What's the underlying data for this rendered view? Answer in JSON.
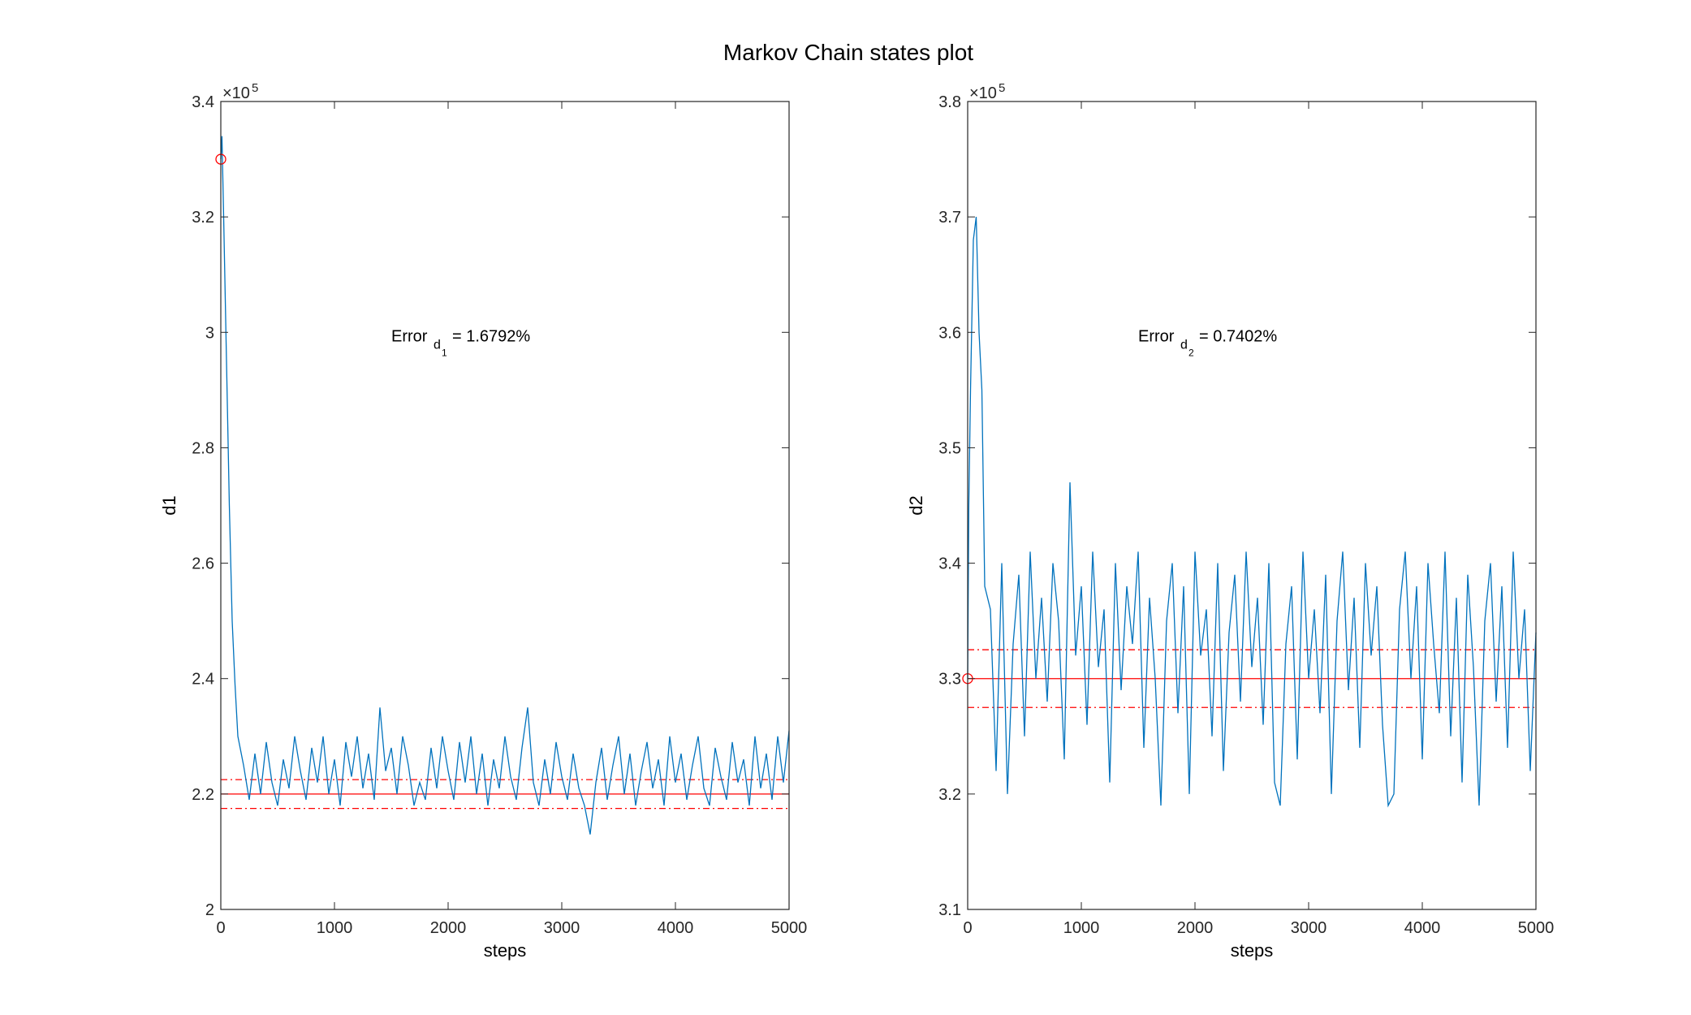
{
  "chart_data": [
    {
      "type": "line",
      "title": "Markov Chain states plot",
      "xlabel": "steps",
      "ylabel": "d1",
      "y_exponent": {
        "base": "×10",
        "power": "5"
      },
      "annotation": {
        "text": "Error",
        "sub": "d",
        "subsub": "1",
        "rest": "= 1.6792%"
      },
      "xlim": [
        0,
        5000
      ],
      "xticks": [
        0,
        1000,
        2000,
        3000,
        4000,
        5000
      ],
      "ylim": [
        2,
        3.4
      ],
      "yticks": [
        2,
        2.2,
        2.4,
        2.6,
        2.8,
        3,
        3.2,
        3.4
      ],
      "start": {
        "x": 0,
        "y": 3.3,
        "color": "#ff0000"
      },
      "hlines": [
        {
          "value": 2.2,
          "style": "solid",
          "color": "#ff0000"
        },
        {
          "value": 2.225,
          "style": "dashdot",
          "color": "#ff0000"
        },
        {
          "value": 2.175,
          "style": "dashdot",
          "color": "#ff0000"
        }
      ],
      "x": [
        0,
        10,
        25,
        50,
        75,
        100,
        125,
        150,
        200,
        250,
        300,
        350,
        400,
        450,
        500,
        550,
        600,
        650,
        700,
        750,
        800,
        850,
        900,
        950,
        1000,
        1050,
        1100,
        1150,
        1200,
        1250,
        1300,
        1350,
        1400,
        1450,
        1500,
        1550,
        1600,
        1650,
        1700,
        1750,
        1800,
        1850,
        1900,
        1950,
        2000,
        2050,
        2100,
        2150,
        2200,
        2250,
        2300,
        2350,
        2400,
        2450,
        2500,
        2550,
        2600,
        2650,
        2700,
        2750,
        2800,
        2850,
        2900,
        2950,
        3000,
        3050,
        3100,
        3150,
        3200,
        3250,
        3300,
        3350,
        3400,
        3450,
        3500,
        3550,
        3600,
        3650,
        3700,
        3750,
        3800,
        3850,
        3900,
        3950,
        4000,
        4050,
        4100,
        4150,
        4200,
        4250,
        4300,
        4350,
        4400,
        4450,
        4500,
        4550,
        4600,
        4650,
        4700,
        4750,
        4800,
        4850,
        4900,
        4950,
        5000
      ],
      "series": [
        {
          "color": "#0072bd",
          "values": [
            3.3,
            3.34,
            3.2,
            2.95,
            2.7,
            2.5,
            2.39,
            2.3,
            2.25,
            2.19,
            2.27,
            2.2,
            2.29,
            2.22,
            2.18,
            2.26,
            2.21,
            2.3,
            2.24,
            2.19,
            2.28,
            2.22,
            2.3,
            2.2,
            2.26,
            2.18,
            2.29,
            2.23,
            2.3,
            2.21,
            2.27,
            2.19,
            2.35,
            2.24,
            2.28,
            2.2,
            2.3,
            2.25,
            2.18,
            2.22,
            2.19,
            2.28,
            2.21,
            2.3,
            2.24,
            2.19,
            2.29,
            2.22,
            2.3,
            2.2,
            2.27,
            2.18,
            2.26,
            2.21,
            2.3,
            2.23,
            2.19,
            2.28,
            2.35,
            2.22,
            2.18,
            2.26,
            2.2,
            2.29,
            2.23,
            2.19,
            2.27,
            2.21,
            2.18,
            2.13,
            2.22,
            2.28,
            2.19,
            2.25,
            2.3,
            2.2,
            2.27,
            2.18,
            2.24,
            2.29,
            2.21,
            2.26,
            2.18,
            2.3,
            2.22,
            2.27,
            2.19,
            2.25,
            2.3,
            2.21,
            2.18,
            2.28,
            2.23,
            2.19,
            2.29,
            2.22,
            2.26,
            2.18,
            2.3,
            2.21,
            2.27,
            2.19,
            2.3,
            2.22,
            2.31
          ]
        }
      ]
    },
    {
      "type": "line",
      "xlabel": "steps",
      "ylabel": "d2",
      "y_exponent": {
        "base": "×10",
        "power": "5"
      },
      "annotation": {
        "text": "Error",
        "sub": "d",
        "subsub": "2",
        "rest": "= 0.7402%"
      },
      "xlim": [
        0,
        5000
      ],
      "xticks": [
        0,
        1000,
        2000,
        3000,
        4000,
        5000
      ],
      "ylim": [
        3.1,
        3.8
      ],
      "yticks": [
        3.1,
        3.2,
        3.3,
        3.4,
        3.5,
        3.6,
        3.7,
        3.8
      ],
      "start": {
        "x": 0,
        "y": 3.3,
        "color": "#ff0000"
      },
      "hlines": [
        {
          "value": 3.3,
          "style": "solid",
          "color": "#ff0000"
        },
        {
          "value": 3.325,
          "style": "dashdot",
          "color": "#ff0000"
        },
        {
          "value": 3.275,
          "style": "dashdot",
          "color": "#ff0000"
        }
      ],
      "x": [
        0,
        10,
        25,
        50,
        75,
        100,
        125,
        150,
        200,
        250,
        300,
        350,
        400,
        450,
        500,
        550,
        600,
        650,
        700,
        750,
        800,
        850,
        900,
        950,
        1000,
        1050,
        1100,
        1150,
        1200,
        1250,
        1300,
        1350,
        1400,
        1450,
        1500,
        1550,
        1600,
        1650,
        1700,
        1750,
        1800,
        1850,
        1900,
        1950,
        2000,
        2050,
        2100,
        2150,
        2200,
        2250,
        2300,
        2350,
        2400,
        2450,
        2500,
        2550,
        2600,
        2650,
        2700,
        2750,
        2800,
        2850,
        2900,
        2950,
        3000,
        3050,
        3100,
        3150,
        3200,
        3250,
        3300,
        3350,
        3400,
        3450,
        3500,
        3550,
        3600,
        3650,
        3700,
        3750,
        3800,
        3850,
        3900,
        3950,
        4000,
        4050,
        4100,
        4150,
        4200,
        4250,
        4300,
        4350,
        4400,
        4450,
        4500,
        4550,
        4600,
        4650,
        4700,
        4750,
        4800,
        4850,
        4900,
        4950,
        5000
      ],
      "series": [
        {
          "color": "#0072bd",
          "values": [
            3.3,
            3.45,
            3.55,
            3.68,
            3.7,
            3.6,
            3.55,
            3.38,
            3.36,
            3.22,
            3.4,
            3.2,
            3.33,
            3.39,
            3.25,
            3.41,
            3.3,
            3.37,
            3.28,
            3.4,
            3.35,
            3.23,
            3.47,
            3.32,
            3.38,
            3.26,
            3.41,
            3.31,
            3.36,
            3.21,
            3.4,
            3.29,
            3.38,
            3.33,
            3.41,
            3.24,
            3.37,
            3.3,
            3.19,
            3.35,
            3.4,
            3.27,
            3.38,
            3.2,
            3.41,
            3.32,
            3.36,
            3.25,
            3.4,
            3.22,
            3.34,
            3.39,
            3.28,
            3.41,
            3.31,
            3.37,
            3.26,
            3.4,
            3.21,
            3.19,
            3.33,
            3.38,
            3.23,
            3.41,
            3.3,
            3.36,
            3.27,
            3.39,
            3.2,
            3.35,
            3.41,
            3.29,
            3.37,
            3.24,
            3.4,
            3.32,
            3.38,
            3.26,
            3.19,
            3.2,
            3.36,
            3.41,
            3.3,
            3.38,
            3.23,
            3.4,
            3.33,
            3.27,
            3.41,
            3.25,
            3.37,
            3.21,
            3.39,
            3.31,
            3.19,
            3.35,
            3.4,
            3.28,
            3.38,
            3.24,
            3.41,
            3.3,
            3.36,
            3.22,
            3.34
          ]
        }
      ]
    }
  ]
}
